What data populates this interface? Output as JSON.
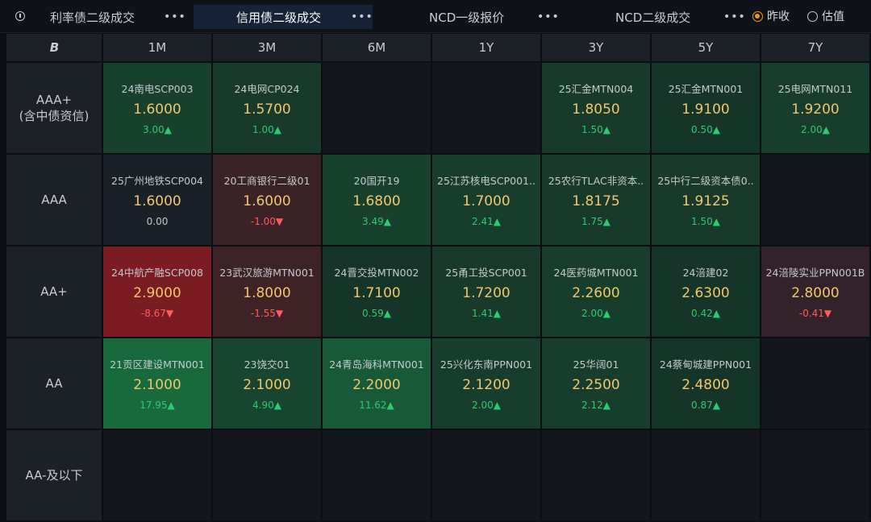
{
  "tabs": [
    {
      "label": "利率债二级成交",
      "dots": "•••"
    },
    {
      "label": "信用债二级成交",
      "dots": "•••"
    },
    {
      "label": "NCD一级报价",
      "dots": "•••"
    },
    {
      "label": "NCD二级成交",
      "dots": "•••"
    }
  ],
  "radio": {
    "options": [
      "昨收",
      "估值"
    ],
    "selected": "昨收"
  },
  "corner_icon": "b-logo-icon",
  "corner_label": "B",
  "columns": [
    "1M",
    "3M",
    "6M",
    "1Y",
    "3Y",
    "5Y",
    "7Y"
  ],
  "rows": [
    {
      "label_line1": "AAA+",
      "label_line2": "(含中债资信)",
      "cells": [
        {
          "name": "24南电SCP003",
          "rate": "1.6000",
          "chg": "3.00▲",
          "dir": "up",
          "bg": "#17402d"
        },
        {
          "name": "24电网CP024",
          "rate": "1.5700",
          "chg": "1.00▲",
          "dir": "up",
          "bg": "#173a2b"
        },
        null,
        null,
        {
          "name": "25汇金MTN004",
          "rate": "1.8050",
          "chg": "1.50▲",
          "dir": "up",
          "bg": "#173a2b"
        },
        {
          "name": "25汇金MTN001",
          "rate": "1.9100",
          "chg": "0.50▲",
          "dir": "up",
          "bg": "#163529"
        },
        {
          "name": "25电网MTN011",
          "rate": "1.9200",
          "chg": "2.00▲",
          "dir": "up",
          "bg": "#173d2c"
        }
      ]
    },
    {
      "label_line1": "AAA",
      "label_line2": "",
      "cells": [
        {
          "name": "25广州地铁SCP004",
          "rate": "1.6000",
          "chg": "0.00",
          "dir": "flat",
          "bg": "#1a2028"
        },
        {
          "name": "20工商银行二级01",
          "rate": "1.6000",
          "chg": "-1.00▼",
          "dir": "down",
          "bg": "#3a2226"
        },
        {
          "name": "20国开19",
          "rate": "1.6800",
          "chg": "3.49▲",
          "dir": "up",
          "bg": "#17402d"
        },
        {
          "name": "25江苏核电SCP001..",
          "rate": "1.7000",
          "chg": "2.41▲",
          "dir": "up",
          "bg": "#173d2c"
        },
        {
          "name": "25农行TLAC非资本..",
          "rate": "1.8175",
          "chg": "1.75▲",
          "dir": "up",
          "bg": "#173a2b"
        },
        {
          "name": "25中行二级资本债0..",
          "rate": "1.9125",
          "chg": "1.50▲",
          "dir": "up",
          "bg": "#173a2b"
        },
        null
      ]
    },
    {
      "label_line1": "AA+",
      "label_line2": "",
      "cells": [
        {
          "name": "24中航产融SCP008",
          "rate": "2.9000",
          "chg": "-8.67▼",
          "dir": "down",
          "bg": "#7a1c22"
        },
        {
          "name": "23武汉旅游MTN001",
          "rate": "1.8000",
          "chg": "-1.55▼",
          "dir": "down",
          "bg": "#3d2226"
        },
        {
          "name": "24晋交投MTN002",
          "rate": "1.7100",
          "chg": "0.59▲",
          "dir": "up",
          "bg": "#163529"
        },
        {
          "name": "25甬工投SCP001",
          "rate": "1.7200",
          "chg": "1.41▲",
          "dir": "up",
          "bg": "#173a2b"
        },
        {
          "name": "24医药城MTN001",
          "rate": "2.2600",
          "chg": "2.00▲",
          "dir": "up",
          "bg": "#173d2c"
        },
        {
          "name": "24涪建02",
          "rate": "2.6300",
          "chg": "0.42▲",
          "dir": "up",
          "bg": "#163529"
        },
        {
          "name": "24涪陵实业PPN001B",
          "rate": "2.8000",
          "chg": "-0.41▼",
          "dir": "down",
          "bg": "#33222a"
        }
      ]
    },
    {
      "label_line1": "AA",
      "label_line2": "",
      "cells": [
        {
          "name": "21贡区建设MTN001",
          "rate": "2.1000",
          "chg": "17.95▲",
          "dir": "up",
          "bg": "#186a3c"
        },
        {
          "name": "23饶交01",
          "rate": "2.1000",
          "chg": "4.90▲",
          "dir": "up",
          "bg": "#17452f"
        },
        {
          "name": "24青岛海科MTN001",
          "rate": "2.2000",
          "chg": "11.62▲",
          "dir": "up",
          "bg": "#185a37"
        },
        {
          "name": "25兴化东南PPN001",
          "rate": "2.1200",
          "chg": "2.00▲",
          "dir": "up",
          "bg": "#173d2c"
        },
        {
          "name": "25华阔01",
          "rate": "2.2500",
          "chg": "2.12▲",
          "dir": "up",
          "bg": "#173d2c"
        },
        {
          "name": "24蔡甸城建PPN001",
          "rate": "2.4800",
          "chg": "0.87▲",
          "dir": "up",
          "bg": "#163529"
        },
        null
      ]
    },
    {
      "label_line1": "AA-及以下",
      "label_line2": "",
      "cells": [
        null,
        null,
        null,
        null,
        null,
        null,
        null
      ]
    }
  ]
}
